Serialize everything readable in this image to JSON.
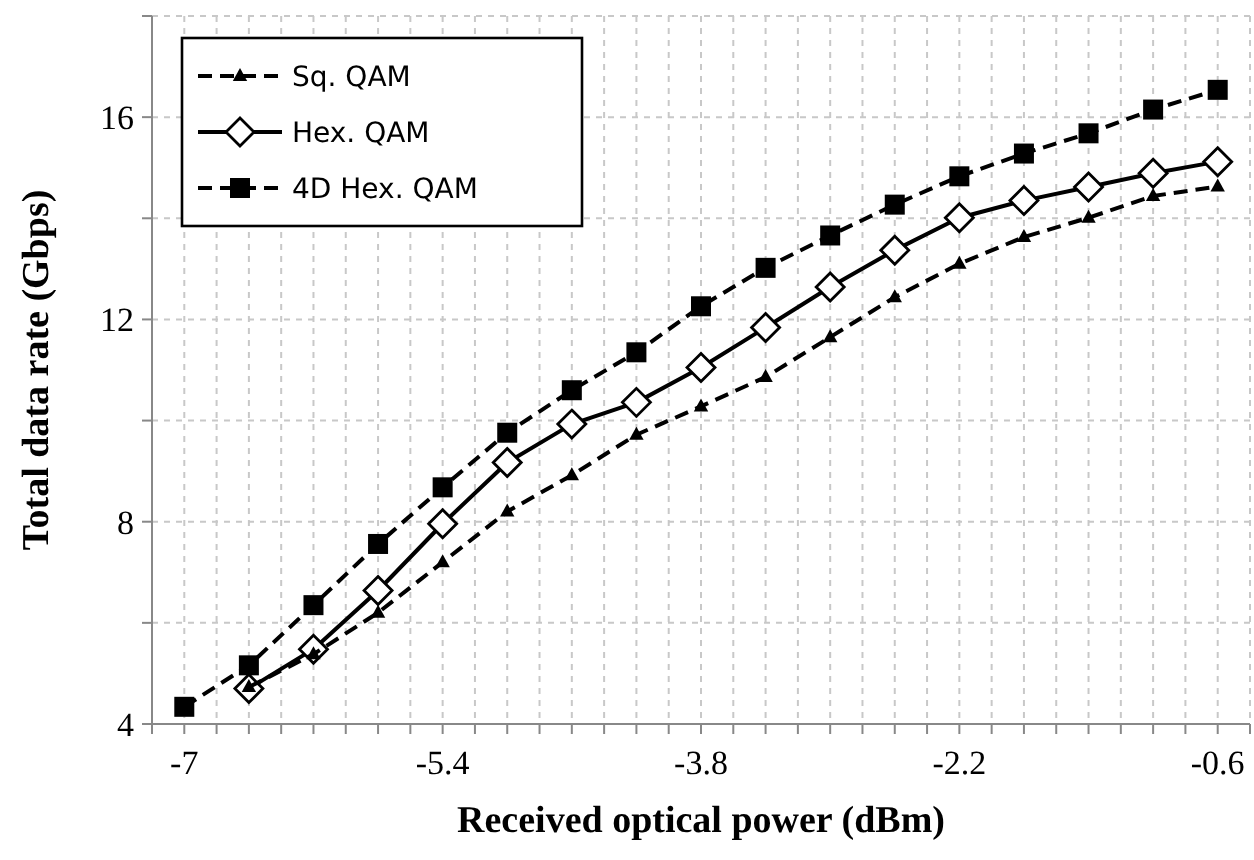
{
  "chart_data": {
    "type": "line",
    "xlabel": "Received optical power (dBm)",
    "ylabel": "Total data rate (Gbps)",
    "x": [
      -7,
      -6.6,
      -6.2,
      -5.8,
      -5.4,
      -5,
      -4.6,
      -4.2,
      -3.8,
      -3.4,
      -3,
      -2.6,
      -2.2,
      -1.8,
      -1.4,
      -1,
      -0.6
    ],
    "xlim": [
      -7.2,
      -0.4
    ],
    "xticks": [
      {
        "value": -7.2,
        "label": null
      },
      -7,
      {
        "value": -6.8,
        "label": null
      },
      {
        "value": -6.6,
        "label": null
      },
      {
        "value": -6.4,
        "label": null
      },
      {
        "value": -6.2,
        "label": null
      },
      {
        "value": -6,
        "label": null
      },
      {
        "value": -5.8,
        "label": null
      },
      {
        "value": -5.6,
        "label": null
      },
      -5.4,
      {
        "value": -5.2,
        "label": null
      },
      {
        "value": -5,
        "label": null
      },
      {
        "value": -4.8,
        "label": null
      },
      {
        "value": -4.6,
        "label": null
      },
      {
        "value": -4.4,
        "label": null
      },
      {
        "value": -4.2,
        "label": null
      },
      {
        "value": -4,
        "label": null
      },
      -3.8,
      {
        "value": -3.6,
        "label": null
      },
      {
        "value": -3.4,
        "label": null
      },
      {
        "value": -3.2,
        "label": null
      },
      {
        "value": -3,
        "label": null
      },
      {
        "value": -2.8,
        "label": null
      },
      {
        "value": -2.6,
        "label": null
      },
      {
        "value": -2.4,
        "label": null
      },
      -2.2,
      {
        "value": -2,
        "label": null
      },
      {
        "value": -1.8,
        "label": null
      },
      {
        "value": -1.6,
        "label": null
      },
      {
        "value": -1.4,
        "label": null
      },
      {
        "value": -1.2,
        "label": null
      },
      {
        "value": -1,
        "label": null
      },
      {
        "value": -0.8,
        "label": null
      },
      -0.6,
      {
        "value": -0.4,
        "label": null
      }
    ],
    "ylim": [
      4,
      18
    ],
    "yticks": [
      4,
      {
        "value": 6,
        "label": null
      },
      8,
      {
        "value": 10,
        "label": null
      },
      12,
      {
        "value": 14,
        "label": null
      },
      16,
      {
        "value": 18,
        "label": null
      }
    ],
    "grid": true,
    "legend": "top left",
    "series": [
      {
        "name": "Sq. QAM",
        "color": "#000000",
        "marker": "triangle",
        "line_style": "dashed",
        "values": [
          null,
          4.73,
          5.38,
          6.2,
          7.2,
          8.2,
          8.92,
          9.72,
          10.28,
          10.86,
          11.65,
          12.44,
          13.1,
          13.63,
          14.01,
          14.44,
          14.63
        ]
      },
      {
        "name": "Hex. QAM",
        "color": "#000000",
        "marker": "diamond",
        "line_style": "solid",
        "values": [
          null,
          4.7,
          5.48,
          6.64,
          7.96,
          9.17,
          9.93,
          10.36,
          11.05,
          11.84,
          12.64,
          13.37,
          14.01,
          14.35,
          14.62,
          14.89,
          15.12
        ]
      },
      {
        "name": "4D Hex. QAM",
        "color": "#000000",
        "marker": "square",
        "line_style": "dashed",
        "values": [
          4.34,
          5.16,
          6.35,
          7.56,
          8.68,
          9.76,
          10.6,
          11.35,
          12.26,
          13.02,
          13.66,
          14.27,
          14.83,
          15.28,
          15.68,
          16.15,
          16.54
        ]
      }
    ]
  }
}
